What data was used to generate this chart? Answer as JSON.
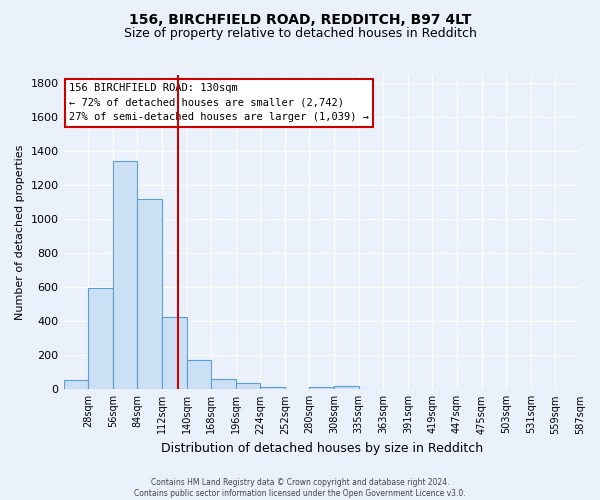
{
  "title1": "156, BIRCHFIELD ROAD, REDDITCH, B97 4LT",
  "title2": "Size of property relative to detached houses in Redditch",
  "xlabel": "Distribution of detached houses by size in Redditch",
  "ylabel": "Number of detached properties",
  "bar_labels": [
    "28sqm",
    "56sqm",
    "84sqm",
    "112sqm",
    "140sqm",
    "168sqm",
    "196sqm",
    "224sqm",
    "252sqm",
    "280sqm",
    "308sqm",
    "335sqm",
    "363sqm",
    "391sqm",
    "419sqm",
    "447sqm",
    "475sqm",
    "503sqm",
    "531sqm",
    "559sqm",
    "587sqm"
  ],
  "bar_values": [
    57,
    598,
    1344,
    1120,
    425,
    173,
    60,
    38,
    12,
    0,
    15,
    20,
    0,
    0,
    0,
    0,
    0,
    0,
    0,
    0,
    0
  ],
  "bar_color": "#cce0f5",
  "bar_edge_color": "#5a9fd4",
  "bg_color": "#eaf1fb",
  "grid_color": "#ffffff",
  "vline_color": "#cc0000",
  "annotation_text": "156 BIRCHFIELD ROAD: 130sqm\n← 72% of detached houses are smaller (2,742)\n27% of semi-detached houses are larger (1,039) →",
  "annotation_box_color": "#ffffff",
  "annotation_box_edge": "#cc0000",
  "ylim": [
    0,
    1850
  ],
  "bin_width": 28,
  "n_bars": 21,
  "footer": "Contains HM Land Registry data © Crown copyright and database right 2024.\nContains public sector information licensed under the Open Government Licence v3.0."
}
